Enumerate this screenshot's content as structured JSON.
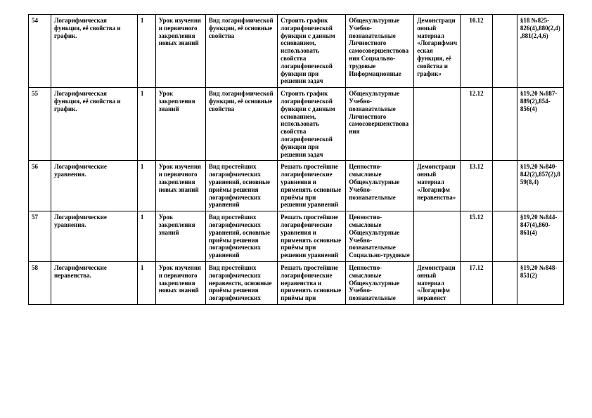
{
  "rows": [
    {
      "num": "54",
      "topic": "Логарифмическая функция, её свойства и график.",
      "hours": "1",
      "lesson_type": "Урок изучения и первичного закрепления новых знаний",
      "content": "Вид логарифмической функции, её основные свойства",
      "activity": "Строить график логарифмической функции с данным основанием, использовать свойства логарифмической функции при решении задач",
      "competences": "Общекультурные Учебно-познавательные Личностного самосовершенствования Социально-трудовые Информационные",
      "material": "Демонстрационный материал «Логарифмическая функция, её свойства и график»",
      "date": "10.12",
      "fact": "",
      "hw": "§18 №825-826(4),880(2,4),881(2,4,6)"
    },
    {
      "num": "55",
      "topic": "Логарифмическая функция, её свойства и график.",
      "hours": "1",
      "lesson_type": "Урок закрепления знаний",
      "content": "Вид логарифмической функции, её основные свойства",
      "activity": "Строить график логарифмической функции с данным основанием, использовать свойства логарифмической функции при решении задач",
      "competences": "Общекультурные Учебно-познавательные Личностного самосовершенствования",
      "material": "",
      "date": "12.12",
      "fact": "",
      "hw": "§19,20 №887-889(2),854-856(4)"
    },
    {
      "num": "56",
      "topic": "Логарифмические уравнения.",
      "hours": "1",
      "lesson_type": "Урок изучения и первичного закрепления новых знаний",
      "content": "Вид простейших логарифмических уравнений, основные приёмы решения логарифмических уравнений",
      "activity": "Решать простейшие логарифмические уравнения и применять основные приёмы при решении уравнений",
      "competences": "Ценностно-смысловые Общекультурные Учебно-познавательные",
      "material": "Демонстрационный материал «Логарифм неравенства»",
      "date": "13.12",
      "fact": "",
      "hw": "§19,20 №840-842(2),857(2),859(8,4)"
    },
    {
      "num": "57",
      "topic": "Логарифмические уравнения.",
      "hours": "1",
      "lesson_type": "Урок закрепления знаний",
      "content": "Вид простейших логарифмических уравнений, основные приёмы решения логарифмических уравнений",
      "activity": "Решать простейшие логарифмические уравнения и применять основные приёмы при решении уравнений",
      "competences": "Ценностно-смысловые Общекультурные Учебно-познавательные Социально-трудовые",
      "material": "",
      "date": "15.12",
      "fact": "",
      "hw": "§19,20 №844-847(4),860-861(4)"
    },
    {
      "num": "58",
      "topic": "Логарифмические неравенства.",
      "hours": "1",
      "lesson_type": "Урок изучения и первичного закрепления новых знаний",
      "content": "Вид простейших логарифмических неравенств, основные приёмы решения логарифмических",
      "activity": "Решать простейшие логарифмические неравенства и применять основные приёмы при",
      "competences": "Ценностно-смысловые Общекультурные Учебно-познавательные",
      "material": "Демонстрационный материал «Логарифм неравенст",
      "date": "17.12",
      "fact": "",
      "hw": "§19,20 №848-851(2)"
    }
  ]
}
